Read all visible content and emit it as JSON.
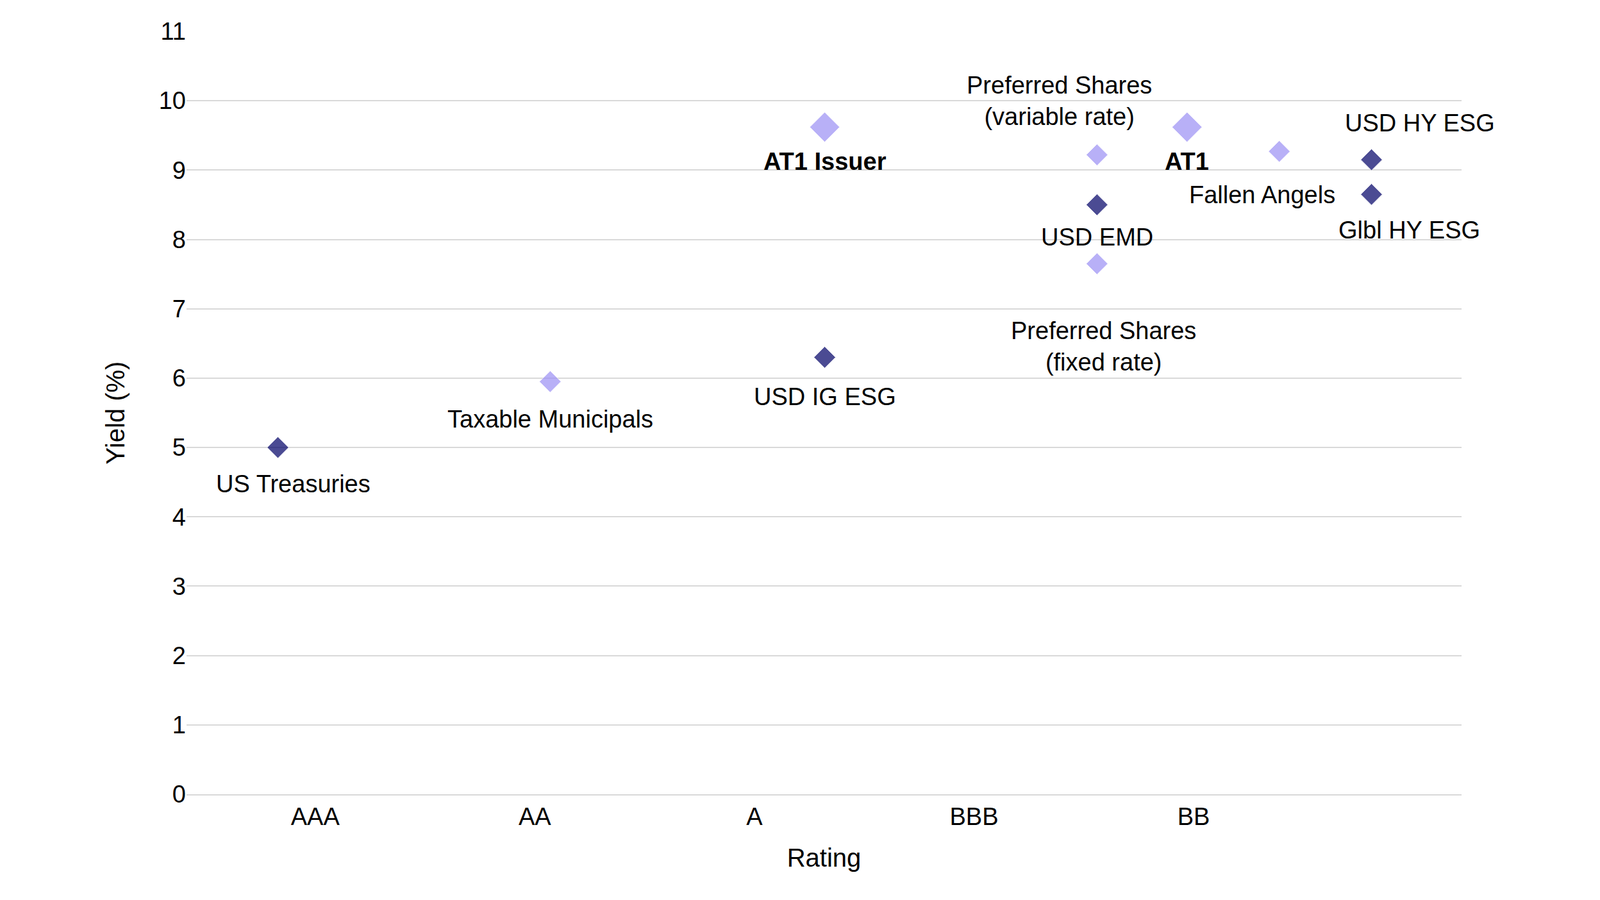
{
  "chart_data": {
    "type": "scatter",
    "xlabel": "Rating",
    "ylabel": "Yield (%)",
    "x": [
      0.83,
      2.07,
      3.32,
      3.32,
      4.56,
      4.56,
      4.56,
      4.97,
      5.39,
      5.81,
      5.81
    ],
    "values": [
      5.0,
      5.95,
      9.62,
      6.3,
      9.22,
      8.5,
      7.65,
      9.62,
      9.27,
      9.15,
      8.65
    ],
    "labels": [
      "US Treasuries",
      "Taxable Municipals",
      "AT1 Issuer",
      "USD IG ESG",
      "Preferred Shares\n(variable rate)",
      "USD EMD",
      "Preferred Shares\n(fixed rate)",
      "AT1",
      "Fallen Angels",
      "USD HY ESG",
      "Glbl HY ESG"
    ],
    "colors": [
      "#000066",
      "#9b8ff5",
      "#9b8ff5",
      "#000066",
      "#9b8ff5",
      "#000066",
      "#9b8ff5",
      "#9b8ff5",
      "#9b8ff5",
      "#000066",
      "#000066"
    ],
    "marker": "diamond",
    "xlim": [
      0.414,
      6.22
    ],
    "xticks": [
      {
        "value": 1,
        "label": "AAA"
      },
      {
        "value": 2,
        "label": "AA"
      },
      {
        "value": 3,
        "label": "A"
      },
      {
        "value": 4,
        "label": "BBB"
      },
      {
        "value": 5,
        "label": "BB"
      }
    ],
    "ylim": [
      0,
      11
    ],
    "yticks": [
      0,
      1,
      2,
      3,
      4,
      5,
      6,
      7,
      8,
      9,
      10,
      11
    ],
    "grid": true
  }
}
